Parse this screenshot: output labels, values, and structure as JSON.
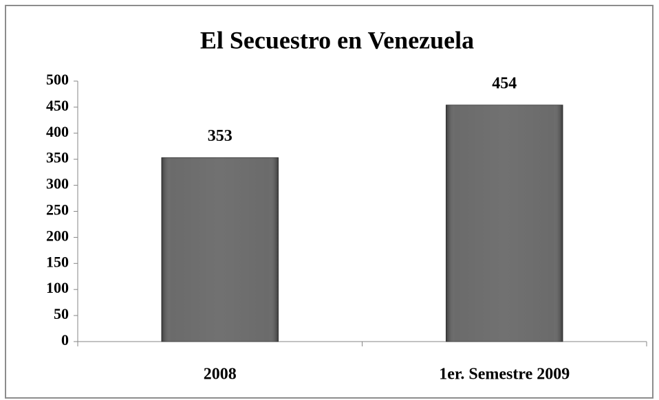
{
  "chart_data": {
    "type": "bar",
    "title": "El Secuestro en Venezuela",
    "categories": [
      "2008",
      "1er. Semestre 2009"
    ],
    "values": [
      353,
      454
    ],
    "color": "#5e5e5e",
    "ylim": [
      0,
      500
    ],
    "yticks": [
      0,
      50,
      100,
      150,
      200,
      250,
      300,
      350,
      400,
      450,
      500
    ],
    "grid": false
  }
}
